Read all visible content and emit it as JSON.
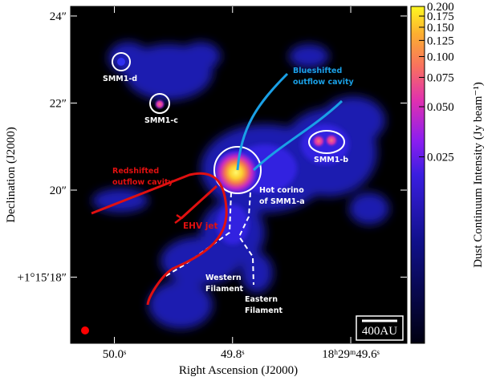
{
  "chart_data": {
    "type": "image",
    "x_label": "Right Ascension (J2000)",
    "y_label": "Declination (J2000)",
    "xlim": [
      50.074,
      49.505
    ],
    "xticks": [
      {
        "value": 50.0,
        "label": "50.0ˢ"
      },
      {
        "value": 49.8,
        "label": "49.8ˢ"
      },
      {
        "value": 49.6,
        "label": "18ʰ29ᵐ49.6ˢ"
      }
    ],
    "ylim": [
      16.48,
      24.22
    ],
    "yticks": [
      {
        "value": 24,
        "label": "24″"
      },
      {
        "value": 22,
        "label": "22″"
      },
      {
        "value": 20,
        "label": "20″"
      },
      {
        "value": 18,
        "label": "+1°15′18″"
      }
    ],
    "colorbar": {
      "label": "Dust Continuum Intensity (Jy beam⁻¹)",
      "scale": "log",
      "lim": [
        0.0019,
        0.2
      ],
      "ticks": [
        {
          "value": 0.2,
          "label": "0.200"
        },
        {
          "value": 0.175,
          "label": "0.175"
        },
        {
          "value": 0.15,
          "label": "0.150"
        },
        {
          "value": 0.125,
          "label": "0.125"
        },
        {
          "value": 0.1,
          "label": "0.100"
        },
        {
          "value": 0.075,
          "label": "0.075"
        },
        {
          "value": 0.05,
          "label": "0.050"
        },
        {
          "value": 0.025,
          "label": "0.025"
        }
      ]
    },
    "annotations": {
      "smm1_d": "SMM1-d",
      "smm1_c": "SMM1-c",
      "smm1_b": "SMM1-b",
      "hot_corino": [
        "Hot corino",
        "of SMM1-a"
      ],
      "blueshifted": [
        "Blueshifted",
        "outflow cavity"
      ],
      "redshifted": [
        "Redshifted",
        "outflow cavity"
      ],
      "ehv_jet": "EHV jet",
      "western": [
        "Western",
        "Filament"
      ],
      "eastern": [
        "Eastern",
        "Filament"
      ]
    },
    "scale_bar": "400AU"
  }
}
